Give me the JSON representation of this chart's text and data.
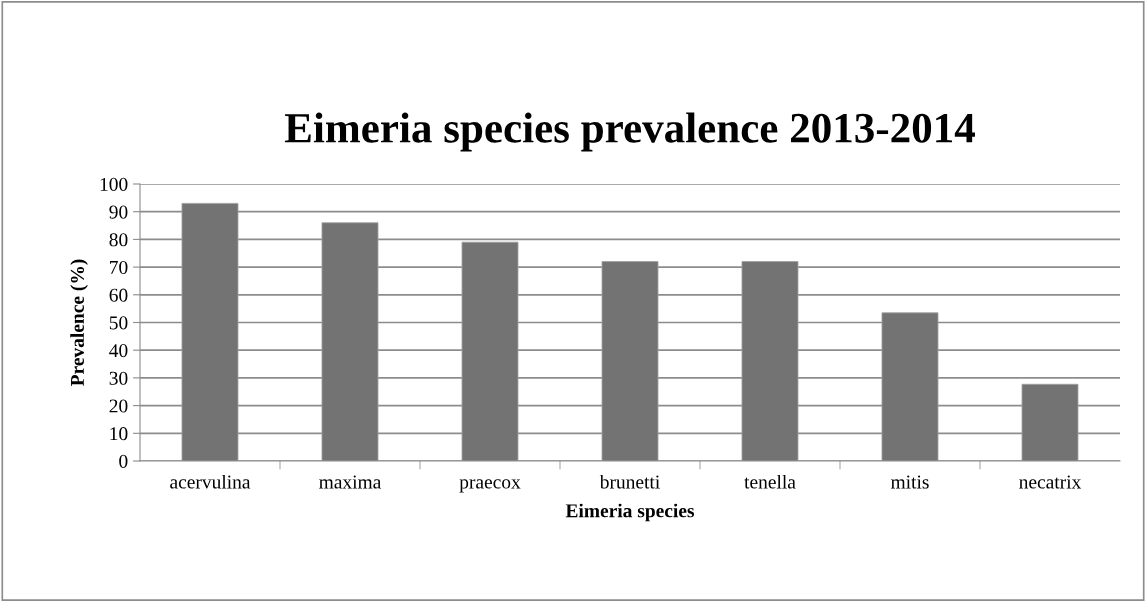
{
  "chart_data": {
    "type": "bar",
    "title": "Eimeria species prevalence 2013-2014",
    "xlabel": "Eimeria species",
    "ylabel": "Prevalence (%)",
    "categories": [
      "acervulina",
      "maxima",
      "praecox",
      "brunetti",
      "tenella",
      "mitis",
      "necatrix"
    ],
    "values": [
      93,
      86,
      79,
      72,
      72,
      53.5,
      27.7
    ],
    "color": "#737373",
    "ylim": [
      0,
      100
    ],
    "yticks": [
      0,
      10,
      20,
      30,
      40,
      50,
      60,
      70,
      80,
      90,
      100
    ],
    "grid": "y",
    "legend": false
  }
}
